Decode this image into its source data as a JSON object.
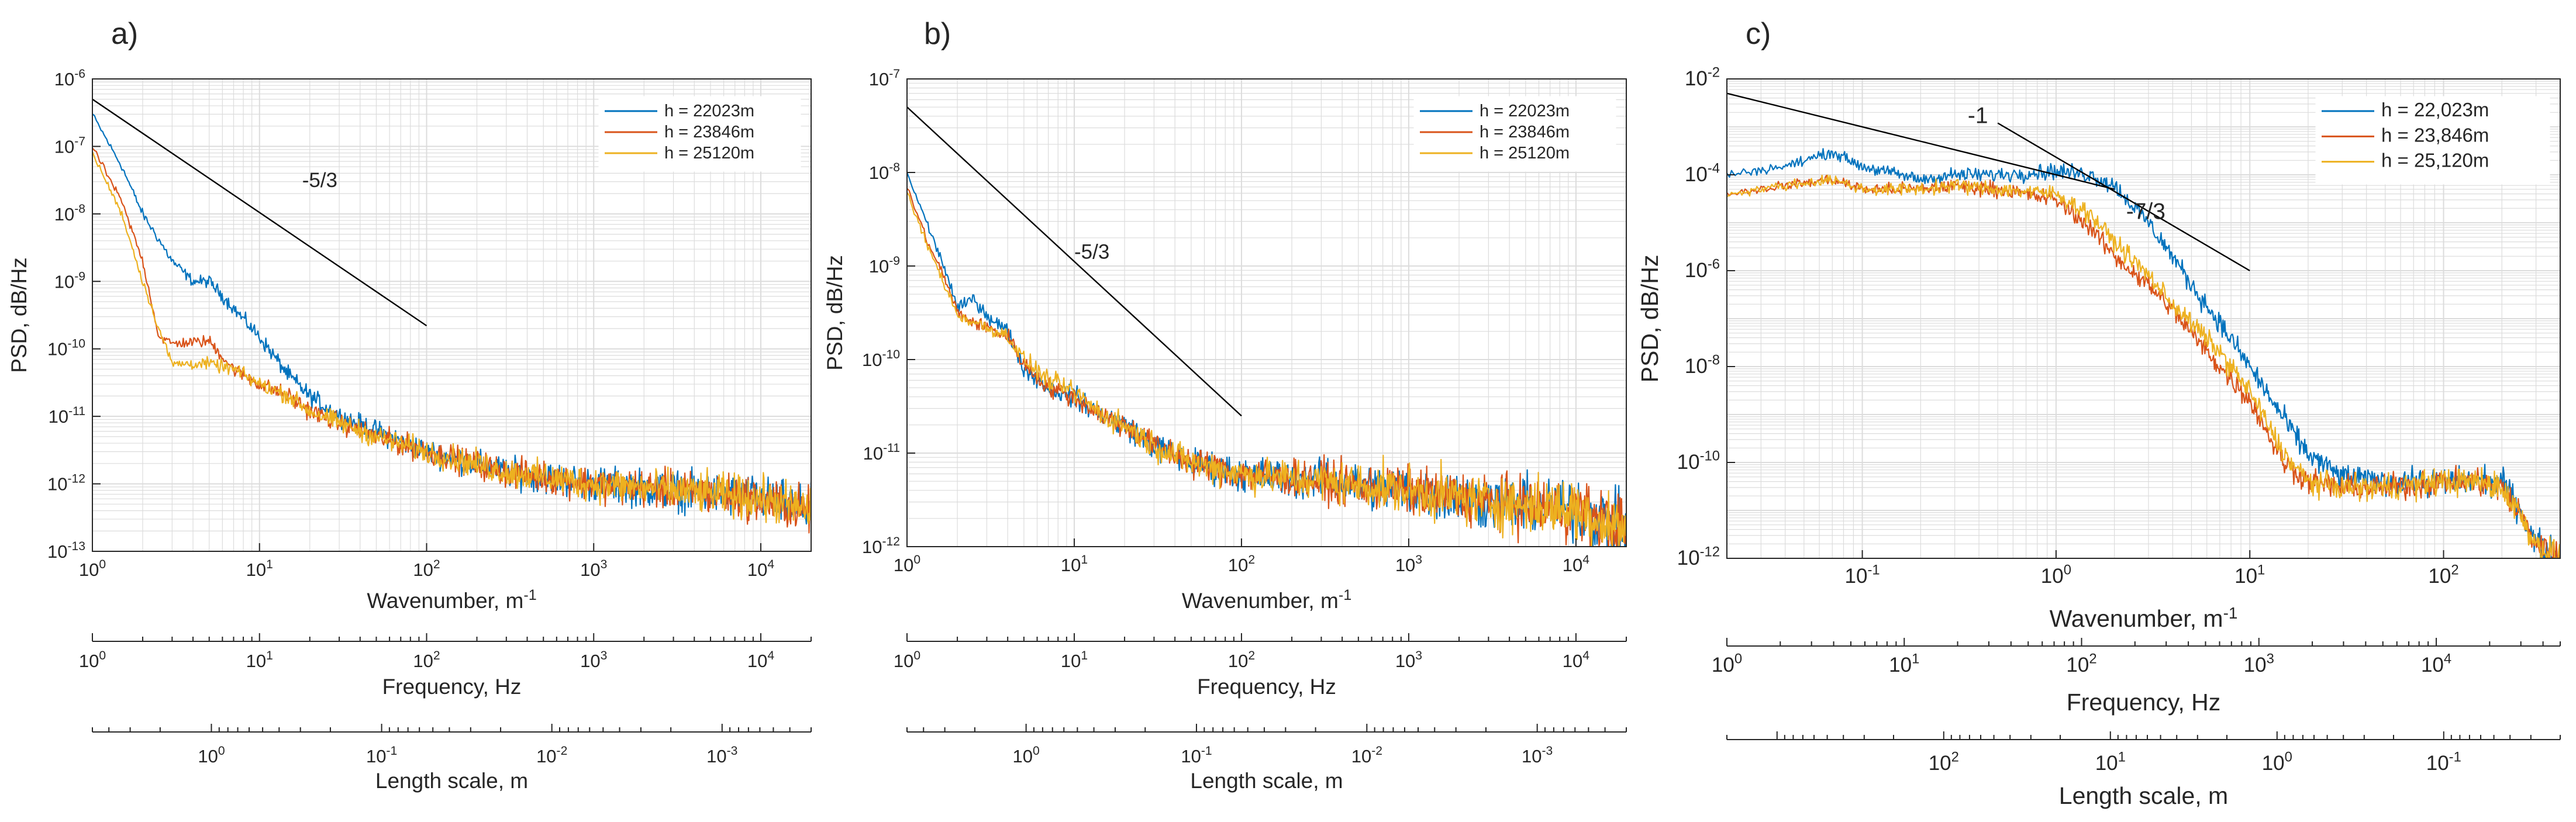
{
  "colors": {
    "series": [
      "#0072BD",
      "#D95319",
      "#EDB120"
    ],
    "reference": "#000000",
    "grid": "#dcdcdc",
    "axis": "#262626"
  },
  "chart_data": [
    {
      "panel": "a)",
      "type": "line",
      "xscale": "log",
      "yscale": "log",
      "xlim": [
        1,
        20000
      ],
      "ylim": [
        1e-13,
        1e-06
      ],
      "xlabel": "Wavenumber, m",
      "xlabel_exp": "-1",
      "ylabel": "PSD, dB/Hz",
      "x_ticks": [
        {
          "v": 1,
          "b": "10",
          "e": "0"
        },
        {
          "v": 10,
          "b": "10",
          "e": "1"
        },
        {
          "v": 100,
          "b": "10",
          "e": "2"
        },
        {
          "v": 1000,
          "b": "10",
          "e": "3"
        },
        {
          "v": 10000,
          "b": "10",
          "e": "4"
        }
      ],
      "y_ticks": [
        {
          "v": 1e-13,
          "b": "10",
          "e": "-13"
        },
        {
          "v": 1e-12,
          "b": "10",
          "e": "-12"
        },
        {
          "v": 1e-11,
          "b": "10",
          "e": "-11"
        },
        {
          "v": 1e-10,
          "b": "10",
          "e": "-10"
        },
        {
          "v": 1e-09,
          "b": "10",
          "e": "-9"
        },
        {
          "v": 1e-08,
          "b": "10",
          "e": "-8"
        },
        {
          "v": 1e-07,
          "b": "10",
          "e": "-7"
        },
        {
          "v": 1e-06,
          "b": "10",
          "e": "-6"
        }
      ],
      "legend": {
        "position": "top-right"
      },
      "series": [
        {
          "name": "h = 22023m",
          "x": [
            1,
            1.5,
            2,
            3,
            4,
            5,
            7,
            10,
            15,
            20,
            30,
            50,
            100,
            300,
            1000,
            3000,
            10000,
            20000
          ],
          "y": [
            3e-07,
            5e-08,
            1e-08,
            2e-09,
            1e-09,
            1e-09,
            4e-10,
            1.5e-10,
            4e-11,
            2e-11,
            1e-11,
            6e-12,
            3e-12,
            1.5e-12,
            1e-12,
            8e-13,
            6e-13,
            4e-13
          ]
        },
        {
          "name": "h = 23846m",
          "x": [
            1,
            1.5,
            2,
            2.5,
            3,
            5,
            7,
            10,
            15,
            20,
            30,
            50,
            100,
            300,
            1000,
            3000,
            10000,
            20000
          ],
          "y": [
            1e-07,
            1.5e-08,
            2e-09,
            1.5e-10,
            1.2e-10,
            1.3e-10,
            5e-11,
            3e-11,
            2e-11,
            1.2e-11,
            8e-12,
            5e-12,
            3e-12,
            1.5e-12,
            1e-12,
            8e-13,
            6e-13,
            4e-13
          ]
        },
        {
          "name": "h = 25120m",
          "x": [
            1,
            1.5,
            2,
            2.5,
            3,
            5,
            7,
            10,
            15,
            20,
            30,
            50,
            100,
            300,
            1000,
            3000,
            10000,
            20000
          ],
          "y": [
            8e-08,
            1e-08,
            1e-09,
            2e-10,
            6e-11,
            6e-11,
            5e-11,
            3e-11,
            2e-11,
            1.2e-11,
            8e-12,
            5e-12,
            3e-12,
            1.5e-12,
            1e-12,
            8e-13,
            6e-13,
            4e-13
          ]
        }
      ],
      "reference_line": {
        "label": "-5/3",
        "x": [
          1,
          100
        ],
        "y": [
          5e-07,
          2.2e-10
        ],
        "label_at": [
          18,
          2.5e-08
        ]
      }
    },
    {
      "panel": "b)",
      "type": "line",
      "xscale": "log",
      "yscale": "log",
      "xlim": [
        1,
        20000
      ],
      "ylim": [
        1e-12,
        1e-07
      ],
      "xlabel": "Wavenumber, m",
      "xlabel_exp": "-1",
      "ylabel": "PSD, dB/Hz",
      "x_ticks": [
        {
          "v": 1,
          "b": "10",
          "e": "0"
        },
        {
          "v": 10,
          "b": "10",
          "e": "1"
        },
        {
          "v": 100,
          "b": "10",
          "e": "2"
        },
        {
          "v": 1000,
          "b": "10",
          "e": "3"
        },
        {
          "v": 10000,
          "b": "10",
          "e": "4"
        }
      ],
      "y_ticks": [
        {
          "v": 1e-12,
          "b": "10",
          "e": "-12"
        },
        {
          "v": 1e-11,
          "b": "10",
          "e": "-11"
        },
        {
          "v": 1e-10,
          "b": "10",
          "e": "-10"
        },
        {
          "v": 1e-09,
          "b": "10",
          "e": "-9"
        },
        {
          "v": 1e-08,
          "b": "10",
          "e": "-8"
        },
        {
          "v": 1e-07,
          "b": "10",
          "e": "-7"
        }
      ],
      "legend": {
        "position": "top-right"
      },
      "series": [
        {
          "name": "h = 22023m",
          "x": [
            1,
            1.3,
            1.7,
            2,
            2.5,
            3,
            4,
            5,
            7,
            10,
            15,
            20,
            30,
            50,
            100,
            300,
            1000,
            3000,
            10000,
            20000
          ],
          "y": [
            1e-08,
            3e-09,
            9e-10,
            3.5e-10,
            4.5e-10,
            3e-10,
            2e-10,
            8e-11,
            5e-11,
            4e-11,
            2.5e-11,
            2e-11,
            1.2e-11,
            8e-12,
            6e-12,
            5e-12,
            4e-12,
            3e-12,
            2.5e-12,
            1.5e-12
          ]
        },
        {
          "name": "h = 23846m",
          "x": [
            1,
            1.3,
            1.7,
            2,
            2.5,
            3,
            4,
            5,
            7,
            10,
            15,
            20,
            30,
            50,
            100,
            300,
            1000,
            3000,
            10000,
            20000
          ],
          "y": [
            7e-09,
            2e-09,
            7e-10,
            3.2e-10,
            2.5e-10,
            2.2e-10,
            1.8e-10,
            9e-11,
            5e-11,
            4e-11,
            2.5e-11,
            2e-11,
            1.2e-11,
            8e-12,
            6e-12,
            5e-12,
            4e-12,
            3e-12,
            2.5e-12,
            1.5e-12
          ]
        },
        {
          "name": "h = 25120m",
          "x": [
            1,
            1.3,
            1.7,
            2,
            2.5,
            3,
            4,
            5,
            7,
            10,
            15,
            20,
            30,
            50,
            100,
            300,
            1000,
            3000,
            10000,
            20000
          ],
          "y": [
            6e-09,
            1.8e-09,
            6e-10,
            3e-10,
            2.5e-10,
            2.2e-10,
            1.8e-10,
            1e-10,
            6e-11,
            4.5e-11,
            2.5e-11,
            2e-11,
            1.2e-11,
            8e-12,
            6e-12,
            5e-12,
            4e-12,
            3e-12,
            2.5e-12,
            1.5e-12
          ]
        }
      ],
      "reference_line": {
        "label": "-5/3",
        "x": [
          1,
          100
        ],
        "y": [
          5e-08,
          2.5e-11
        ],
        "label_at": [
          10,
          1.2e-09
        ]
      }
    },
    {
      "panel": "c)",
      "type": "line",
      "xscale": "log",
      "yscale": "log",
      "xlim": [
        0.02,
        400
      ],
      "ylim": [
        1e-12,
        0.01
      ],
      "xlabel": "Wavenumber, m",
      "xlabel_exp": "-1",
      "ylabel": "PSD, dB/Hz",
      "x_ticks": [
        {
          "v": 0.1,
          "b": "10",
          "e": "-1"
        },
        {
          "v": 1,
          "b": "10",
          "e": "0"
        },
        {
          "v": 10,
          "b": "10",
          "e": "1"
        },
        {
          "v": 100,
          "b": "10",
          "e": "2"
        }
      ],
      "y_ticks": [
        {
          "v": 1e-12,
          "b": "10",
          "e": "-12"
        },
        {
          "v": 1e-10,
          "b": "10",
          "e": "-10"
        },
        {
          "v": 1e-08,
          "b": "10",
          "e": "-8"
        },
        {
          "v": 1e-06,
          "b": "10",
          "e": "-6"
        },
        {
          "v": 0.0001,
          "b": "10",
          "e": "-4"
        },
        {
          "v": 0.01,
          "b": "10",
          "e": "-2"
        }
      ],
      "legend": {
        "position": "top-right"
      },
      "series": [
        {
          "name": "h = 22,023m",
          "x": [
            0.02,
            0.04,
            0.07,
            0.1,
            0.2,
            0.3,
            0.5,
            1,
            1.5,
            2,
            3,
            4,
            5,
            7,
            10,
            15,
            20,
            30,
            50,
            100,
            150,
            200,
            250,
            300,
            400
          ],
          "y": [
            0.0001,
            0.00015,
            0.0003,
            0.00015,
            8e-05,
            0.0001,
            0.0001,
            0.00012,
            0.0001,
            6e-05,
            1e-05,
            2e-06,
            5e-07,
            8e-08,
            1e-08,
            8e-10,
            1.5e-10,
            5e-11,
            4e-11,
            4e-11,
            4e-11,
            4e-11,
            1e-11,
            2e-12,
            1e-12
          ]
        },
        {
          "name": "h = 23,846m",
          "x": [
            0.02,
            0.04,
            0.07,
            0.1,
            0.2,
            0.3,
            0.5,
            1,
            1.5,
            2,
            3,
            4,
            5,
            7,
            10,
            15,
            20,
            30,
            50,
            100,
            150,
            200,
            250,
            300,
            400
          ],
          "y": [
            4e-05,
            6e-05,
            8e-05,
            5e-05,
            5e-05,
            6e-05,
            5e-05,
            3e-05,
            8e-06,
            2e-06,
            5e-07,
            1.5e-07,
            5e-08,
            1e-08,
            2e-09,
            1e-10,
            4e-11,
            3e-11,
            3e-11,
            4e-11,
            4e-11,
            3e-11,
            8e-12,
            2e-12,
            1e-12
          ]
        },
        {
          "name": "h = 25,120m",
          "x": [
            0.02,
            0.04,
            0.07,
            0.1,
            0.2,
            0.3,
            0.5,
            1,
            1.5,
            2,
            3,
            4,
            5,
            7,
            10,
            15,
            20,
            30,
            50,
            100,
            150,
            200,
            250,
            300,
            400
          ],
          "y": [
            4e-05,
            6e-05,
            8e-05,
            5e-05,
            5e-05,
            6e-05,
            5e-05,
            4e-05,
            1.5e-05,
            4e-06,
            8e-07,
            2e-07,
            8e-08,
            2e-08,
            3e-09,
            1.5e-10,
            4e-11,
            3e-11,
            3e-11,
            4e-11,
            4e-11,
            3e-11,
            8e-12,
            2e-12,
            1e-12
          ]
        }
      ],
      "reference_line": {
        "label": "-1",
        "x": [
          0.02,
          2
        ],
        "y": [
          0.005,
          5e-05
        ],
        "label_at": [
          0.35,
          0.0012
        ]
      },
      "reference_line_2": {
        "label": "-7/3",
        "x": [
          0.5,
          10
        ],
        "y": [
          0.0012,
          1e-06
        ],
        "label_at": [
          2.3,
          1.2e-05
        ]
      }
    }
  ],
  "secondary_axes": [
    {
      "panel": 0,
      "frequency": {
        "label": "Frequency, Hz",
        "range": [
          1,
          20000
        ],
        "ticks": [
          {
            "v": 1,
            "b": "10",
            "e": "0"
          },
          {
            "v": 10,
            "b": "10",
            "e": "1"
          },
          {
            "v": 100,
            "b": "10",
            "e": "2"
          },
          {
            "v": 1000,
            "b": "10",
            "e": "3"
          },
          {
            "v": 10000,
            "b": "10",
            "e": "4"
          }
        ]
      },
      "length": {
        "label": "Length scale, m",
        "range": [
          5,
          0.0003
        ],
        "ticks": [
          {
            "v": 1,
            "b": "10",
            "e": "0"
          },
          {
            "v": 0.1,
            "b": "10",
            "e": "-1"
          },
          {
            "v": 0.01,
            "b": "10",
            "e": "-2"
          },
          {
            "v": 0.001,
            "b": "10",
            "e": "-3"
          }
        ]
      }
    },
    {
      "panel": 1,
      "frequency": {
        "label": "Frequency, Hz",
        "range": [
          1,
          20000
        ],
        "ticks": [
          {
            "v": 1,
            "b": "10",
            "e": "0"
          },
          {
            "v": 10,
            "b": "10",
            "e": "1"
          },
          {
            "v": 100,
            "b": "10",
            "e": "2"
          },
          {
            "v": 1000,
            "b": "10",
            "e": "3"
          },
          {
            "v": 10000,
            "b": "10",
            "e": "4"
          }
        ]
      },
      "length": {
        "label": "Length scale, m",
        "range": [
          5,
          0.0003
        ],
        "ticks": [
          {
            "v": 1,
            "b": "10",
            "e": "0"
          },
          {
            "v": 0.1,
            "b": "10",
            "e": "-1"
          },
          {
            "v": 0.01,
            "b": "10",
            "e": "-2"
          },
          {
            "v": 0.001,
            "b": "10",
            "e": "-3"
          }
        ]
      }
    },
    {
      "panel": 2,
      "frequency": {
        "label": "Frequency, Hz",
        "range": [
          1,
          50000
        ],
        "ticks": [
          {
            "v": 1,
            "b": "10",
            "e": "0"
          },
          {
            "v": 10,
            "b": "10",
            "e": "1"
          },
          {
            "v": 100,
            "b": "10",
            "e": "2"
          },
          {
            "v": 1000,
            "b": "10",
            "e": "3"
          },
          {
            "v": 10000,
            "b": "10",
            "e": "4"
          }
        ]
      },
      "length": {
        "label": "Length scale, m",
        "range": [
          2000,
          0.02
        ],
        "ticks": [
          {
            "v": 100,
            "b": "10",
            "e": "2"
          },
          {
            "v": 10,
            "b": "10",
            "e": "1"
          },
          {
            "v": 1,
            "b": "10",
            "e": "0"
          },
          {
            "v": 0.1,
            "b": "10",
            "e": "-1"
          }
        ]
      }
    }
  ]
}
